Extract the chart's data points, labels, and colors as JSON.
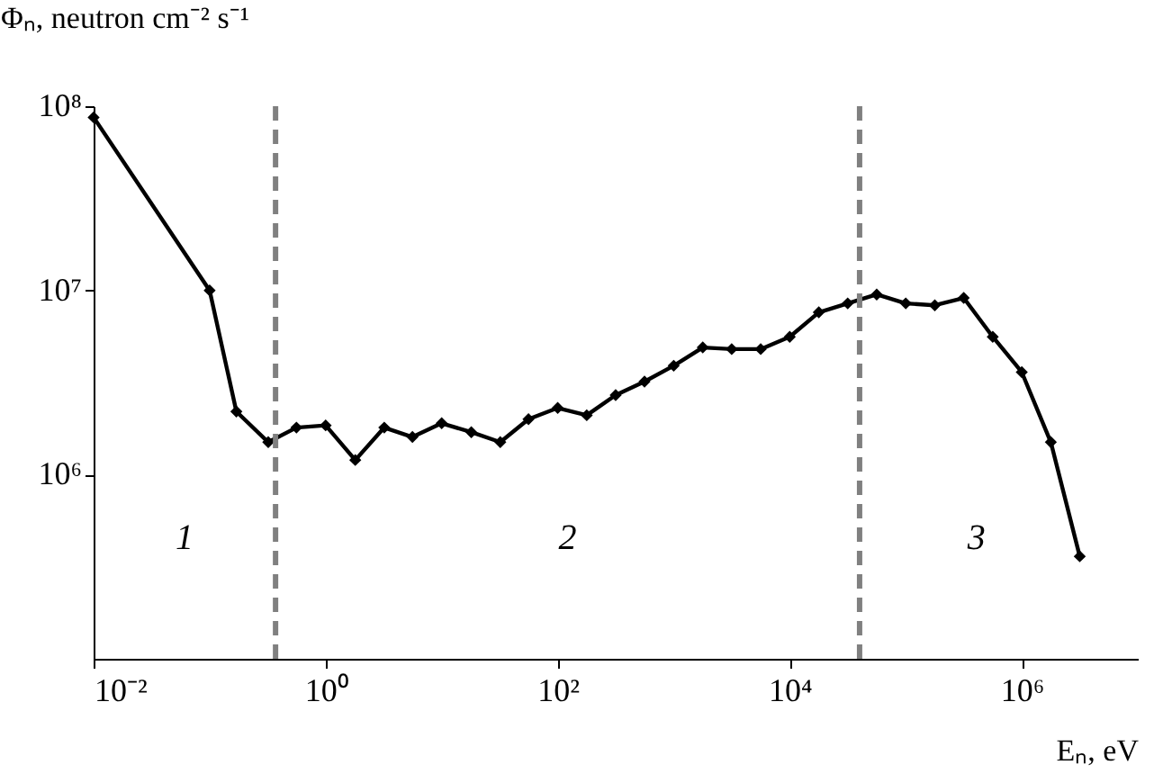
{
  "chart_data": {
    "type": "line",
    "xlabel": "Eₙ, eV",
    "ylabel": "Φₙ, neutron cm⁻² s⁻¹",
    "log": "xy",
    "marker": "diamond",
    "line_style": "solid",
    "x": [
      0.01,
      0.1,
      0.17,
      0.32,
      0.56,
      1,
      1.8,
      3.2,
      5.6,
      10,
      18,
      32,
      56,
      100,
      178,
      316,
      560,
      1000,
      1780,
      3160,
      5620,
      10000,
      17800,
      31600,
      56200,
      100000,
      178000,
      316000,
      562000,
      1000000,
      1780000,
      3160000
    ],
    "series": [
      {
        "color": "#000000",
        "values": [
          87000000.0,
          10000000.0,
          2200000.0,
          1500000.0,
          1800000.0,
          1850000.0,
          1200000.0,
          1800000.0,
          1600000.0,
          1900000.0,
          1700000.0,
          1500000.0,
          2000000.0,
          2300000.0,
          2100000.0,
          2700000.0,
          3200000.0,
          3900000.0,
          4900000.0,
          4800000.0,
          4800000.0,
          5600000.0,
          7600000.0,
          8500000.0,
          9500000.0,
          8500000.0,
          8300000.0,
          9100000.0,
          5600000.0,
          3600000.0,
          1500000.0,
          360000.0
        ]
      }
    ],
    "xlim": [
      0.01,
      10000000
    ],
    "xticks": [
      {
        "value": 0.01,
        "label": "10⁻²"
      },
      {
        "value": 1,
        "label": "10⁰"
      },
      {
        "value": 100,
        "label": "10²"
      },
      {
        "value": 10000,
        "label": "10⁴"
      },
      {
        "value": 1000000,
        "label": "10⁶"
      }
    ],
    "ylim": [
      100000,
      100000000
    ],
    "yticks": [
      {
        "value": 1000000,
        "label": "10⁶"
      },
      {
        "value": 10000000,
        "label": "10⁷"
      },
      {
        "value": 100000000,
        "label": "10⁸"
      }
    ],
    "ref_lines": [
      {
        "axis": "x",
        "value": 0.37,
        "color": "#808080",
        "line_style": "dashed"
      },
      {
        "axis": "x",
        "value": 40000,
        "color": "#808080",
        "line_style": "dashed"
      }
    ],
    "annotations": [
      "1",
      "2",
      "3"
    ]
  }
}
